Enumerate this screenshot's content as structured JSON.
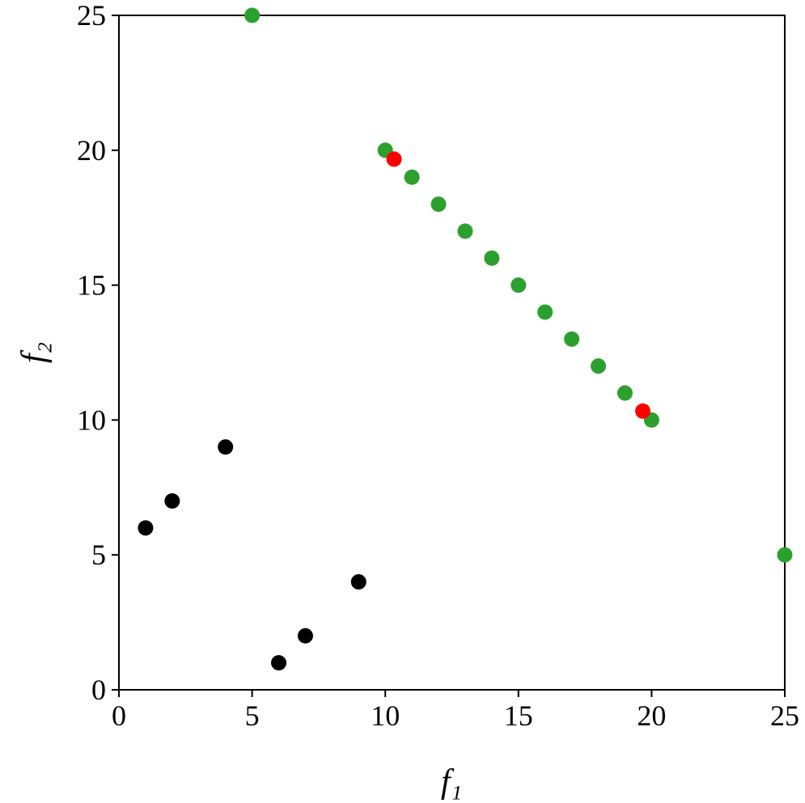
{
  "chart_data": {
    "type": "scatter",
    "x_label": "f₁",
    "y_label": "f₂",
    "xlim": [
      0,
      25
    ],
    "ylim": [
      0,
      25
    ],
    "xticks": [
      0,
      5,
      10,
      15,
      20,
      25
    ],
    "yticks": [
      0,
      5,
      10,
      15,
      20,
      25
    ],
    "grid": false,
    "series": [
      {
        "color": "#000000",
        "x": [
          1,
          2,
          4,
          6,
          7,
          9
        ],
        "values": [
          6,
          7,
          9,
          1,
          2,
          4
        ]
      },
      {
        "color": "#2ca02c",
        "x": [
          5,
          10,
          11,
          12,
          13,
          14,
          15,
          16,
          17,
          18,
          19,
          20,
          25
        ],
        "values": [
          25,
          20,
          19,
          18,
          17,
          16,
          15,
          14,
          13,
          12,
          11,
          10,
          5
        ]
      },
      {
        "color": "#ff0000",
        "x": [
          10.33,
          19.67
        ],
        "values": [
          19.67,
          10.33
        ]
      }
    ]
  }
}
